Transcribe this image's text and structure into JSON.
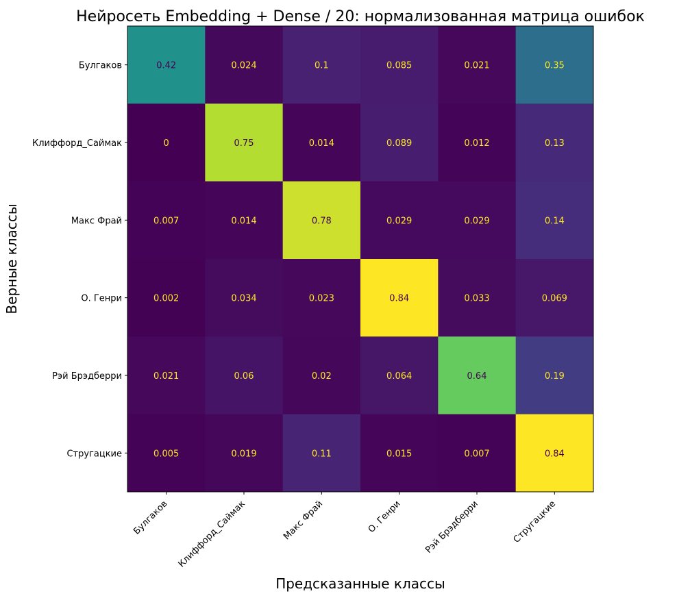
{
  "chart_data": {
    "type": "heatmap",
    "title": "Нейросеть Embedding + Dense / 20: нормализованная матрица ошибок",
    "xlabel": "Предсказанные классы",
    "ylabel": "Верные классы",
    "x_categories": [
      "Булгаков",
      "Клиффорд_Саймак",
      "Макс Фрай",
      "О. Генри",
      "Рэй Брэдберри",
      "Стругацкие"
    ],
    "y_categories": [
      "Булгаков",
      "Клиффорд_Саймак",
      "Макс Фрай",
      "О. Генри",
      "Рэй Брэдберри",
      "Стругацкие"
    ],
    "values": [
      [
        0.42,
        0.024,
        0.1,
        0.085,
        0.021,
        0.35
      ],
      [
        0,
        0.75,
        0.014,
        0.089,
        0.012,
        0.13
      ],
      [
        0.007,
        0.014,
        0.78,
        0.029,
        0.029,
        0.14
      ],
      [
        0.002,
        0.034,
        0.023,
        0.84,
        0.033,
        0.069
      ],
      [
        0.021,
        0.06,
        0.02,
        0.064,
        0.64,
        0.19
      ],
      [
        0.005,
        0.019,
        0.11,
        0.015,
        0.007,
        0.84
      ]
    ],
    "labels": [
      [
        "0.42",
        "0.024",
        "0.1",
        "0.085",
        "0.021",
        "0.35"
      ],
      [
        "0",
        "0.75",
        "0.014",
        "0.089",
        "0.012",
        "0.13"
      ],
      [
        "0.007",
        "0.014",
        "0.78",
        "0.029",
        "0.029",
        "0.14"
      ],
      [
        "0.002",
        "0.034",
        "0.023",
        "0.84",
        "0.033",
        "0.069"
      ],
      [
        "0.021",
        "0.06",
        "0.02",
        "0.064",
        "0.64",
        "0.19"
      ],
      [
        "0.005",
        "0.019",
        "0.11",
        "0.015",
        "0.007",
        "0.84"
      ]
    ],
    "colormap": "viridis",
    "color_range": [
      0,
      0.84
    ],
    "grid": false,
    "legend": "none",
    "x_tick_rotation": 45,
    "colors": {
      "light_text": "#fde725",
      "dark_text": "#440154",
      "frame": "#000000"
    }
  }
}
